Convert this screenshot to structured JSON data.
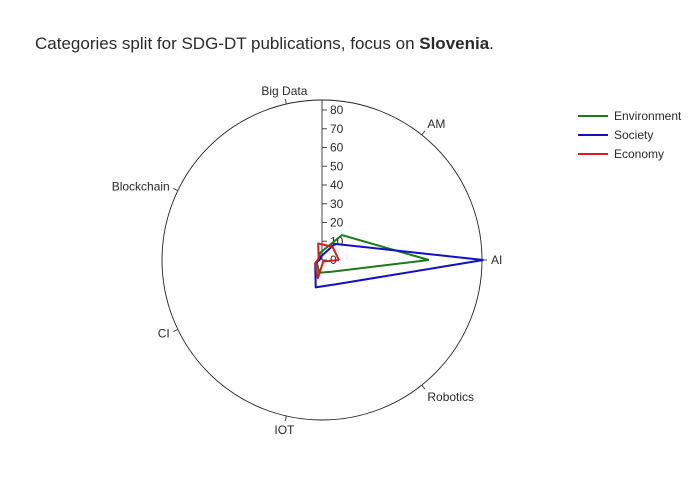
{
  "title": {
    "prefix": "Categories split for SDG-DT publications, focus on ",
    "bold": "Slovenia",
    "suffix": "."
  },
  "chart_data": {
    "type": "radar",
    "title": "Categories split for SDG-DT publications, focus on Slovenia.",
    "categories": [
      "AI",
      "AM",
      "Big Data",
      "Blockchain",
      "CI",
      "IOT",
      "Robotics"
    ],
    "radial_range": [
      0,
      80
    ],
    "radial_ticks": [
      "0",
      "10",
      "20",
      "30",
      "40",
      "50",
      "60",
      "70",
      "80"
    ],
    "legend_position": "top-right",
    "series": [
      {
        "name": "Environment",
        "color": "#1a7a1a",
        "values": [
          57,
          17,
          4,
          2,
          3,
          7,
          8
        ]
      },
      {
        "name": "Society",
        "color": "#1010c8",
        "values": [
          86,
          11,
          2,
          1,
          4,
          15,
          16
        ]
      },
      {
        "name": "Economy",
        "color": "#dd1a1a",
        "values": [
          9,
          9,
          9,
          2,
          4,
          10,
          1
        ]
      }
    ]
  }
}
